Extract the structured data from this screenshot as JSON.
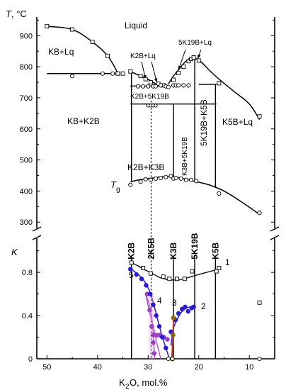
{
  "chart_data": [
    {
      "type": "phase-diagram",
      "ylabel_italic": "T",
      "ylabel_rest": ", °C",
      "y_ticks": [
        "300",
        "400",
        "500",
        "600",
        "700",
        "800",
        "900"
      ],
      "ylim": [
        280,
        960
      ],
      "x_ticks": [
        "50",
        "40",
        "30",
        "20",
        "10"
      ],
      "xlim": [
        52,
        5
      ],
      "x_reversed": true,
      "liquid_label": "Liquid",
      "region_labels": [
        "KB+Lq",
        "K2B+Lq",
        "5K19B+Lq",
        "K2B+5K19B",
        "KB+K2B",
        "K2B+K3B",
        "K3B+5K19B",
        "5K19B+K5B",
        "K5B+Lq"
      ],
      "tg_label_italic": "T",
      "tg_label_sub": "g",
      "liquidus_left": {
        "x": [
          50,
          45,
          41,
          38,
          36
        ],
        "y": [
          930,
          920,
          880,
          835,
          780
        ]
      },
      "liquidus_mid": {
        "x": [
          33.5,
          31.5,
          29.5,
          28,
          26.5
        ],
        "y": [
          785,
          770,
          755,
          740,
          738
        ]
      },
      "liquidus_right_rise": {
        "x": [
          26,
          25,
          24,
          23,
          22,
          21.5
        ],
        "y": [
          745,
          770,
          790,
          810,
          825,
          830
        ]
      },
      "liquidus_right_fall": {
        "x": [
          21,
          19.5,
          18,
          16,
          13,
          10,
          8
        ],
        "y": [
          830,
          815,
          790,
          760,
          720,
          680,
          630
        ]
      },
      "eutectic_lines": [
        {
          "x": [
            50,
            36
          ],
          "y": 778
        },
        {
          "x": [
            33.5,
            26.5
          ],
          "y": 738
        },
        {
          "x": [
            33.5,
            16.5
          ],
          "y": 680
        },
        {
          "x": [
            20,
            16.5
          ],
          "y": 743
        }
      ],
      "compound_lines": [
        {
          "name": "K2B",
          "x": 33.3
        },
        {
          "name": "K3B",
          "x": 25
        },
        {
          "name": "5K19B",
          "x": 20.8
        },
        {
          "name": "K5B",
          "x": 16.7
        }
      ],
      "dotted_line_x": 29.4,
      "tg_curve": {
        "x": [
          33.5,
          31,
          29,
          27,
          25,
          23,
          21,
          18,
          15,
          12,
          8
        ],
        "y": [
          430,
          438,
          442,
          446,
          445,
          440,
          432,
          420,
          400,
          370,
          325
        ]
      },
      "tg_points_x": [
        33.5,
        31.5,
        30.5,
        29.5,
        28.5,
        27.5,
        26.5,
        25.5,
        25,
        24.5,
        23.5,
        22.5,
        21.5,
        20.5,
        16,
        8
      ],
      "tg_points_y": [
        420,
        430,
        438,
        436,
        440,
        442,
        445,
        448,
        440,
        442,
        440,
        436,
        436,
        432,
        392,
        330
      ],
      "liquidus_points_x": [
        50,
        45,
        41,
        38,
        36,
        35,
        33.5,
        31.5,
        30.5,
        29.5,
        28,
        27,
        25,
        24,
        23,
        22,
        21.5,
        21,
        20,
        16,
        8
      ],
      "liquidus_points_y": [
        930,
        920,
        880,
        835,
        778,
        778,
        785,
        770,
        760,
        750,
        745,
        740,
        758,
        780,
        800,
        818,
        825,
        830,
        820,
        747,
        640
      ],
      "solidus_points_x": [
        45,
        39,
        37,
        32,
        31,
        30,
        29,
        28.5,
        27.5,
        26.5,
        26,
        25,
        24.5,
        24,
        23,
        22
      ],
      "solidus_points_y": [
        770,
        778,
        778,
        737,
        737,
        737,
        737,
        737,
        740,
        737,
        735,
        740,
        740,
        740,
        740,
        740
      ],
      "dotted_points_x": [
        30,
        29.5,
        29,
        28.5
      ],
      "dotted_points_y": [
        675,
        675,
        675,
        675
      ]
    },
    {
      "type": "scatter",
      "ylabel_italic": "K",
      "y_ticks": [
        "0",
        "0.4",
        "0.8"
      ],
      "ylim": [
        0,
        1.05
      ],
      "xlabel_main": "K",
      "xlabel_sub": "2",
      "xlabel_rest": "O, mol.%",
      "compound_labels": [
        {
          "text": "K2B",
          "x": 33.3,
          "color": "#2a1ad0"
        },
        {
          "text": "2K5B",
          "x": 29.4,
          "color": "#b25ad8"
        },
        {
          "text": "K3B",
          "x": 25,
          "color": "#c23a1c"
        },
        {
          "text": "5K19B",
          "x": 20.8,
          "color": "#2a1ad0"
        },
        {
          "text": "K5B",
          "x": 16.7,
          "color": "#111111"
        }
      ],
      "series": [
        {
          "name": "1",
          "color": "#000000",
          "x": [
            33.3,
            32,
            31,
            30,
            29.2,
            28.4,
            27.6,
            26.8,
            26,
            25,
            24,
            23,
            22.2,
            20.8,
            16
          ],
          "y": [
            0.89,
            0.86,
            0.83,
            0.81,
            0.79,
            0.77,
            0.75,
            0.74,
            0.73,
            0.73,
            0.73,
            0.74,
            0.75,
            0.77,
            0.83
          ]
        },
        {
          "name": "2",
          "color": "#2a1ad0",
          "x": [
            25.5,
            25,
            24.3,
            23.6,
            23,
            22.4,
            21.7,
            21
          ],
          "y": [
            0.12,
            0.28,
            0.36,
            0.42,
            0.45,
            0.47,
            0.48,
            0.48
          ]
        },
        {
          "name": "3",
          "color": "#c23a1c",
          "x": [
            25.3,
            25.2,
            25.1,
            25,
            25
          ],
          "y": [
            0,
            0.1,
            0.2,
            0.32,
            0.39
          ]
        },
        {
          "name": "4",
          "color": "#b84dd0",
          "x": [
            28.7,
            28.8,
            28.9,
            29.1,
            29.4,
            29.9,
            30.5,
            29.2,
            28.6,
            27.9,
            27.1,
            26.3
          ],
          "y": [
            0,
            0.08,
            0.18,
            0.3,
            0.42,
            0.52,
            0.6,
            0.22,
            0.22,
            0.22,
            0.2,
            0.18
          ]
        },
        {
          "name": "5",
          "color": "#2a1ad0",
          "x": [
            33.3,
            32.5,
            31.5,
            30.5,
            29.5,
            28.7,
            28,
            27.3,
            26.5,
            25.8
          ],
          "y": [
            0.83,
            0.8,
            0.76,
            0.7,
            0.6,
            0.47,
            0.34,
            0.22,
            0.1,
            0
          ]
        }
      ],
      "points": {
        "s1_x": [
          33.3,
          31,
          29.5,
          27,
          25.8,
          24.3,
          22.8,
          21.3,
          16.5,
          16,
          8
        ],
        "s1_y": [
          0.89,
          0.84,
          0.79,
          0.76,
          0.74,
          0.74,
          0.74,
          0.81,
          0.81,
          0.84,
          0.52
        ],
        "s2_x": [
          25.5,
          24.6,
          24,
          23.3,
          22.7,
          22.1,
          21.4,
          21
        ],
        "s2_y": [
          0.25,
          0.36,
          0.42,
          0.46,
          0.48,
          0.44,
          0.47,
          0.48
        ],
        "s3_x": [
          25.2,
          25.1,
          25
        ],
        "s3_y": [
          0,
          0.22,
          0.38
        ],
        "s4_x": [
          28.8,
          29,
          29.3,
          29.7,
          30.2,
          29,
          28.3,
          27.6,
          26.9,
          26.2
        ],
        "s4_y": [
          0.05,
          0.15,
          0.3,
          0.45,
          0.6,
          0.22,
          0.22,
          0.22,
          0.2,
          0.18
        ],
        "s5_x": [
          33.5,
          32.3,
          31.3,
          30.4,
          29.6,
          29,
          28.4,
          27.8,
          27.2,
          26.5
        ],
        "s5_y": [
          0.83,
          0.78,
          0.74,
          0.68,
          0.6,
          0.5,
          0.4,
          0.3,
          0.2,
          0.1
        ],
        "open_bottom_x": [
          26,
          25.2,
          8
        ],
        "open_bottom_y": [
          0,
          0,
          0
        ]
      }
    }
  ]
}
